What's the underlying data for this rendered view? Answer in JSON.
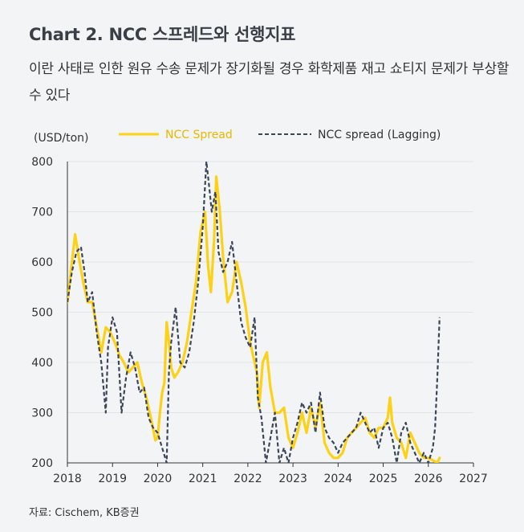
{
  "title": "Chart 2. NCC 스프레드와 선행지표",
  "subtitle": "이란 사태로 인한 원유 수송 문제가 장기화될 경우 화학제품 재고 쇼티지 문제가 부상할 수 있다",
  "source": "자료: Cischem, KB증권",
  "chart_data": {
    "type": "line",
    "ylabel": "(USD/ton)",
    "xlabel": "",
    "ylim": [
      200,
      800
    ],
    "xlim": [
      2018,
      2027
    ],
    "y_ticks": [
      200,
      300,
      400,
      500,
      600,
      700,
      800
    ],
    "x_ticks": [
      2018,
      2019,
      2020,
      2021,
      2022,
      2023,
      2024,
      2025,
      2026,
      2027
    ],
    "grid": true,
    "legend_position": "top",
    "series": [
      {
        "name": "NCC Spread",
        "color": "#fcd116",
        "style": "solid",
        "x": [
          2018.0,
          2018.1,
          2018.17,
          2018.25,
          2018.35,
          2018.45,
          2018.55,
          2018.65,
          2018.75,
          2018.85,
          2018.95,
          2019.05,
          2019.15,
          2019.25,
          2019.35,
          2019.45,
          2019.55,
          2019.65,
          2019.75,
          2019.85,
          2019.95,
          2020.0,
          2020.05,
          2020.1,
          2020.15,
          2020.2,
          2020.25,
          2020.3,
          2020.37,
          2020.45,
          2020.55,
          2020.65,
          2020.75,
          2020.85,
          2020.95,
          2021.05,
          2021.12,
          2021.18,
          2021.25,
          2021.3,
          2021.38,
          2021.45,
          2021.55,
          2021.65,
          2021.75,
          2021.85,
          2021.95,
          2022.05,
          2022.15,
          2022.2,
          2022.25,
          2022.33,
          2022.42,
          2022.5,
          2022.6,
          2022.7,
          2022.8,
          2022.9,
          2023.0,
          2023.1,
          2023.2,
          2023.3,
          2023.4,
          2023.5,
          2023.6,
          2023.7,
          2023.8,
          2023.9,
          2024.0,
          2024.1,
          2024.2,
          2024.3,
          2024.4,
          2024.5,
          2024.6,
          2024.7,
          2024.8,
          2024.9,
          2025.0,
          2025.1,
          2025.15,
          2025.2,
          2025.3,
          2025.4,
          2025.5,
          2025.6,
          2025.7,
          2025.8,
          2025.9,
          2026.0,
          2026.1,
          2026.2,
          2026.25
        ],
        "values": [
          520,
          600,
          655,
          610,
          560,
          520,
          520,
          470,
          420,
          470,
          460,
          440,
          415,
          400,
          380,
          390,
          400,
          360,
          330,
          290,
          245,
          250,
          300,
          340,
          360,
          480,
          440,
          390,
          370,
          380,
          400,
          440,
          500,
          560,
          660,
          700,
          590,
          540,
          640,
          770,
          700,
          610,
          520,
          540,
          600,
          560,
          510,
          440,
          400,
          380,
          310,
          400,
          420,
          350,
          300,
          300,
          310,
          250,
          230,
          260,
          300,
          260,
          310,
          270,
          320,
          240,
          220,
          210,
          210,
          220,
          250,
          260,
          270,
          280,
          290,
          260,
          250,
          270,
          270,
          290,
          330,
          280,
          250,
          240,
          210,
          260,
          240,
          220,
          210,
          210,
          205,
          200,
          210
        ]
      },
      {
        "name": "NCC spread (Lagging)",
        "color": "#3b4659",
        "style": "dashed",
        "x": [
          2018.0,
          2018.1,
          2018.2,
          2018.3,
          2018.38,
          2018.45,
          2018.55,
          2018.65,
          2018.75,
          2018.85,
          2018.9,
          2019.0,
          2019.1,
          2019.2,
          2019.3,
          2019.4,
          2019.5,
          2019.6,
          2019.7,
          2019.8,
          2019.9,
          2020.0,
          2020.1,
          2020.2,
          2020.25,
          2020.3,
          2020.4,
          2020.5,
          2020.6,
          2020.7,
          2020.8,
          2020.9,
          2021.0,
          2021.08,
          2021.13,
          2021.2,
          2021.28,
          2021.35,
          2021.45,
          2021.55,
          2021.65,
          2021.75,
          2021.85,
          2021.95,
          2022.05,
          2022.15,
          2022.22,
          2022.3,
          2022.4,
          2022.5,
          2022.6,
          2022.7,
          2022.8,
          2022.9,
          2023.0,
          2023.1,
          2023.2,
          2023.3,
          2023.4,
          2023.5,
          2023.6,
          2023.7,
          2023.8,
          2023.9,
          2024.0,
          2024.1,
          2024.2,
          2024.3,
          2024.4,
          2024.5,
          2024.6,
          2024.7,
          2024.8,
          2024.9,
          2025.0,
          2025.1,
          2025.2,
          2025.3,
          2025.4,
          2025.5,
          2025.6,
          2025.7,
          2025.8,
          2025.9,
          2026.0,
          2026.1,
          2026.15,
          2026.2,
          2026.25
        ],
        "values": [
          520,
          580,
          620,
          630,
          580,
          520,
          540,
          460,
          400,
          300,
          430,
          490,
          460,
          300,
          370,
          420,
          390,
          340,
          350,
          290,
          270,
          260,
          230,
          200,
          380,
          440,
          510,
          400,
          390,
          420,
          480,
          560,
          670,
          800,
          760,
          700,
          740,
          620,
          580,
          600,
          640,
          560,
          480,
          450,
          430,
          490,
          330,
          290,
          200,
          250,
          300,
          200,
          230,
          200,
          250,
          280,
          320,
          300,
          320,
          260,
          340,
          270,
          250,
          240,
          220,
          240,
          250,
          260,
          270,
          300,
          280,
          260,
          270,
          230,
          270,
          280,
          250,
          200,
          260,
          280,
          240,
          220,
          200,
          220,
          200,
          230,
          270,
          370,
          490
        ]
      }
    ]
  }
}
